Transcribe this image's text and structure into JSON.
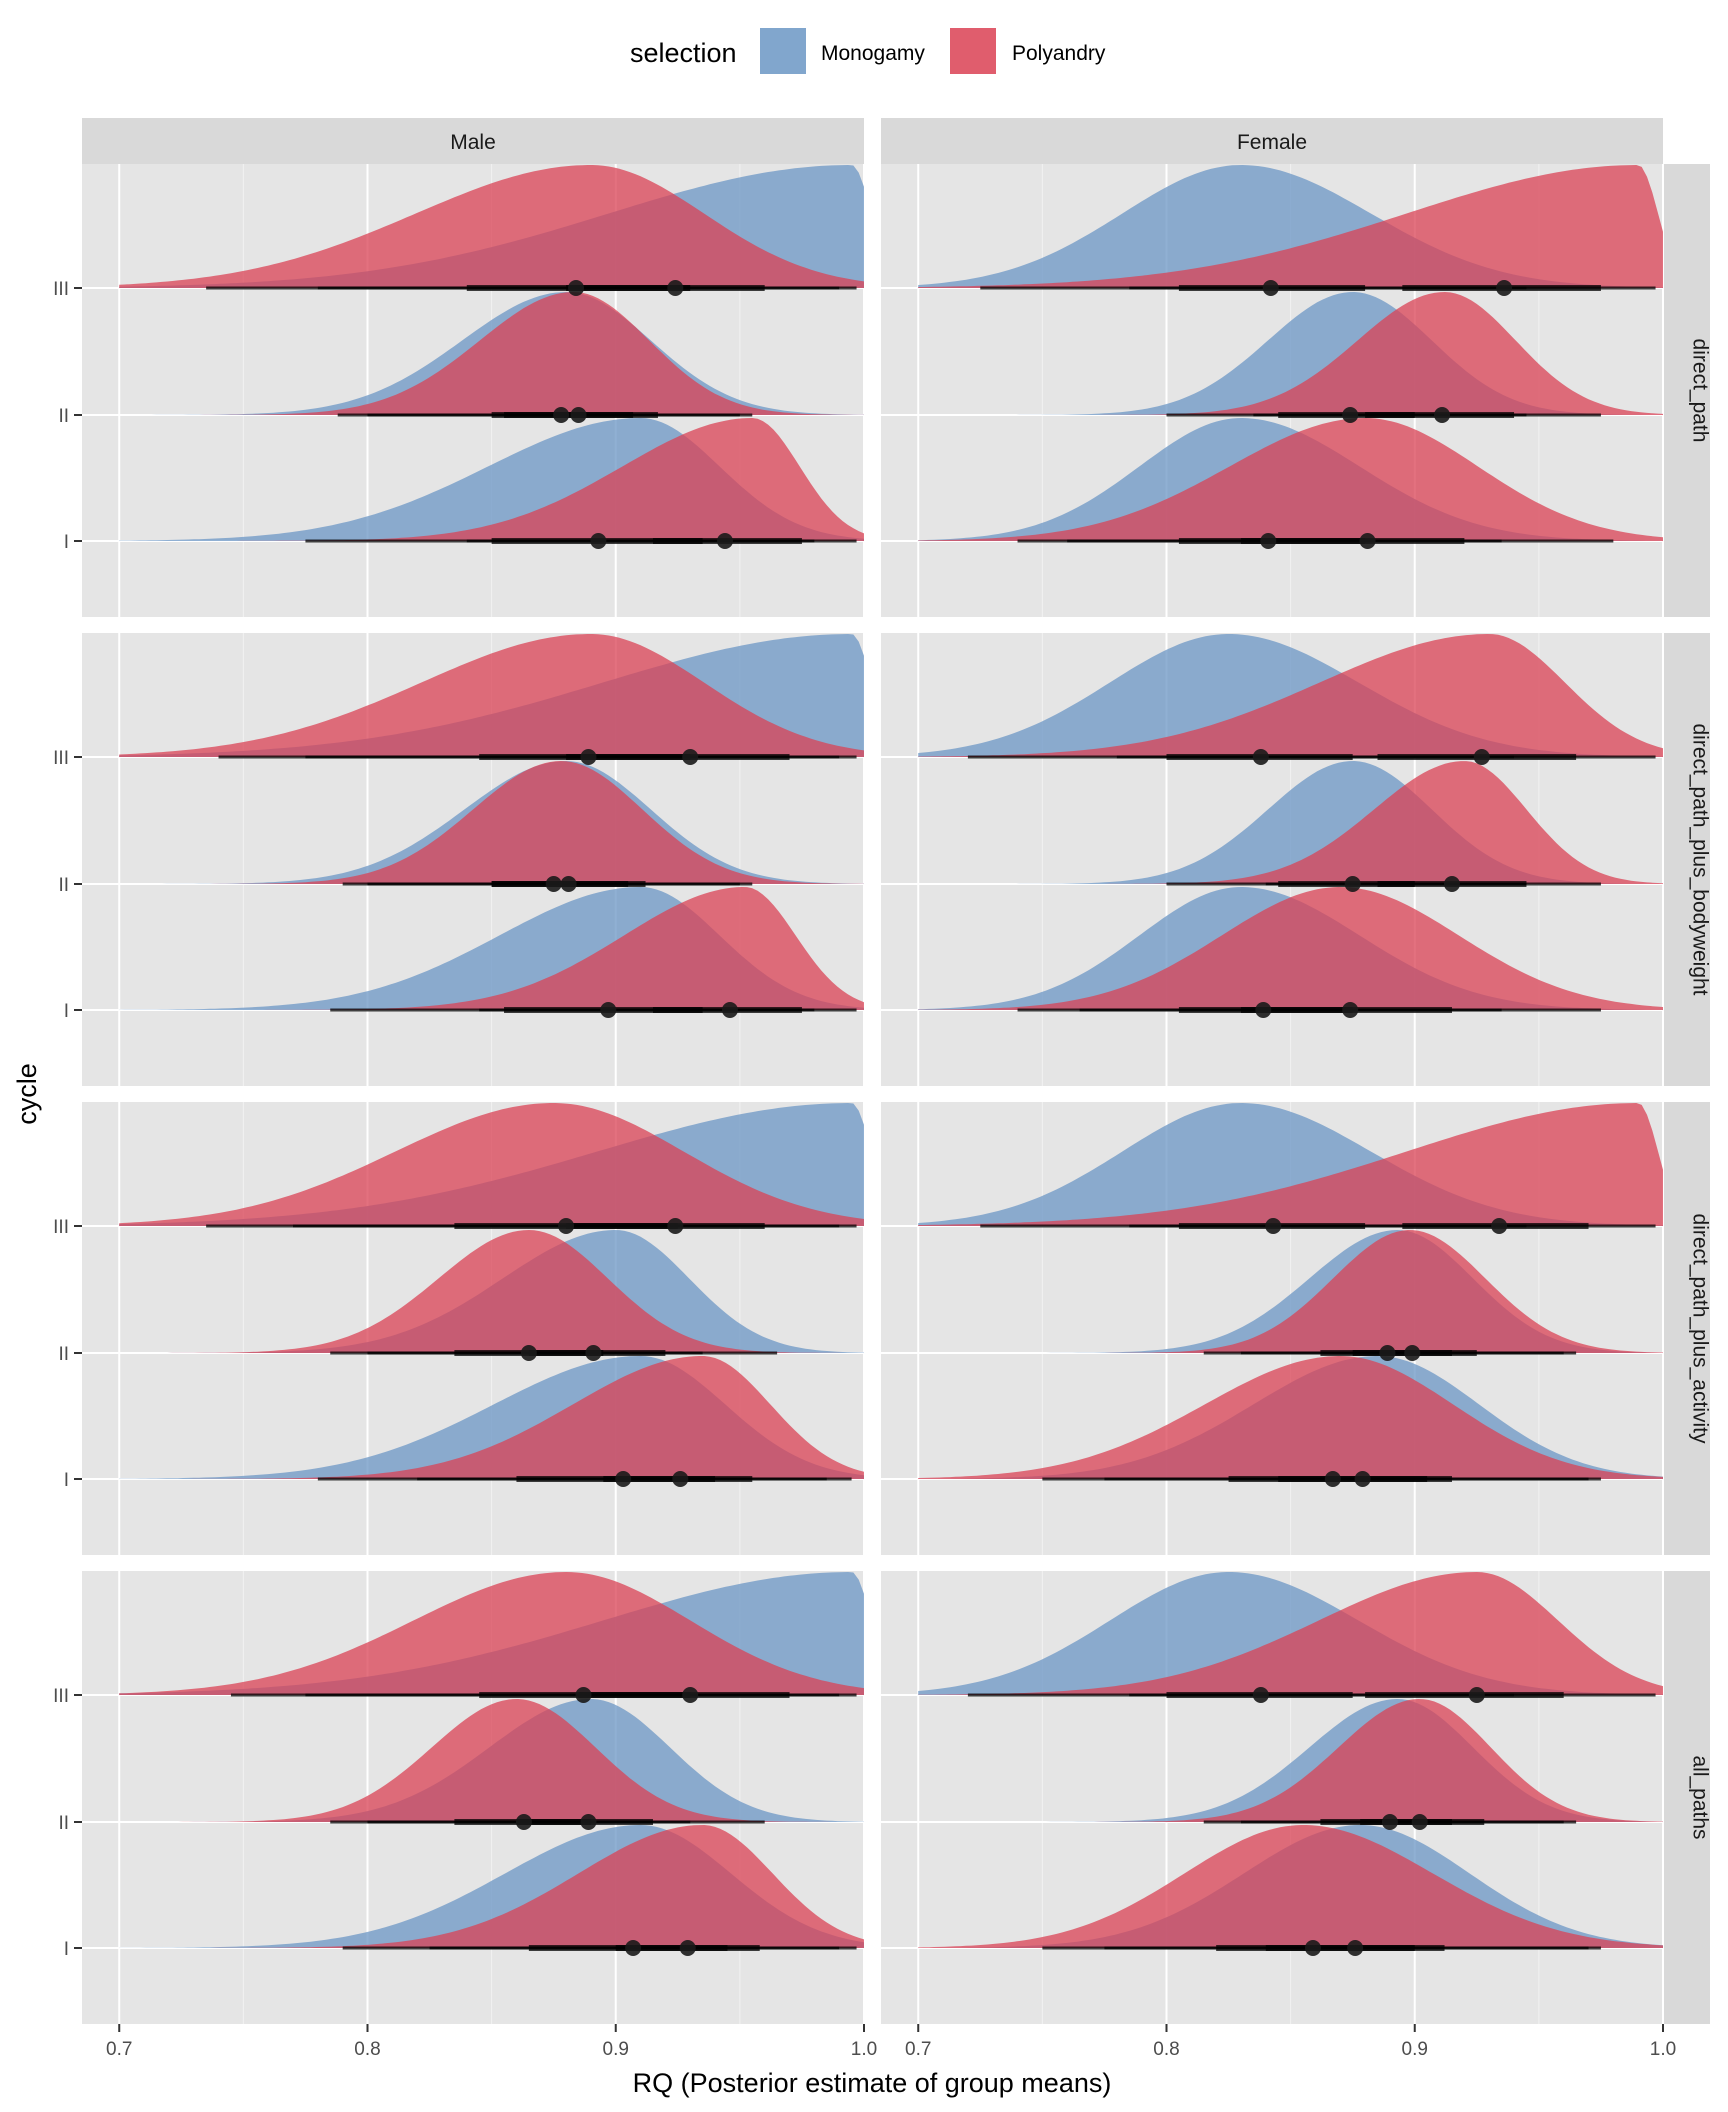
{
  "chart_data": {
    "type": "area",
    "subtype": "faceted halfeye density plots (posterior distributions with point estimate and credible interval bars)",
    "legend": {
      "title": "selection",
      "position": "top",
      "entries": [
        {
          "name": "Monogamy",
          "color": "#6b96c4"
        },
        {
          "name": "Polyandry",
          "color": "#da4154"
        }
      ]
    },
    "xlabel": "RQ (Posterior estimate of group means)",
    "ylabel": "cycle",
    "xlim": [
      0.685,
      1.0
    ],
    "x_ticks": [
      0.7,
      0.8,
      0.9,
      1.0
    ],
    "x_tick_labels": {
      "Male": [
        "0.7",
        "0.8",
        "0.9",
        "1.0"
      ],
      "Female": [
        "0.7",
        "0.8",
        "0.9",
        "1.0"
      ]
    },
    "columns": [
      "Male",
      "Female"
    ],
    "rows": [
      "direct_path",
      "direct_path_plus_bodyweight",
      "direct_path_plus_activity",
      "all_paths"
    ],
    "cycles": [
      "III",
      "II",
      "I"
    ],
    "grid": true,
    "panels": [
      {
        "sex": "Male",
        "model": "direct_path",
        "cycles": [
          {
            "cycle": "III",
            "Monogamy": {
              "median": 0.924,
              "mode": 0.995,
              "ci66": [
                0.88,
                0.96
              ],
              "ci95": [
                0.78,
                0.997
              ]
            },
            "Polyandry": {
              "median": 0.884,
              "mode": 0.89,
              "ci66": [
                0.84,
                0.93
              ],
              "ci95": [
                0.735,
                0.99
              ]
            }
          },
          {
            "cycle": "II",
            "Monogamy": {
              "median": 0.885,
              "mode": 0.88,
              "ci66": [
                0.855,
                0.917
              ],
              "ci95": [
                0.788,
                0.955
              ]
            },
            "Polyandry": {
              "median": 0.878,
              "mode": 0.883,
              "ci66": [
                0.85,
                0.907
              ],
              "ci95": [
                0.8,
                0.95
              ]
            }
          },
          {
            "cycle": "I",
            "Monogamy": {
              "median": 0.893,
              "mode": 0.91,
              "ci66": [
                0.85,
                0.935
              ],
              "ci95": [
                0.775,
                0.98
              ]
            },
            "Polyandry": {
              "median": 0.944,
              "mode": 0.955,
              "ci66": [
                0.915,
                0.975
              ],
              "ci95": [
                0.84,
                0.997
              ]
            }
          }
        ]
      },
      {
        "sex": "Female",
        "model": "direct_path",
        "cycles": [
          {
            "cycle": "III",
            "Monogamy": {
              "median": 0.842,
              "mode": 0.83,
              "ci66": [
                0.805,
                0.88
              ],
              "ci95": [
                0.725,
                0.945
              ]
            },
            "Polyandry": {
              "median": 0.936,
              "mode": 0.99,
              "ci66": [
                0.895,
                0.975
              ],
              "ci95": [
                0.785,
                0.997
              ]
            }
          },
          {
            "cycle": "II",
            "Monogamy": {
              "median": 0.874,
              "mode": 0.875,
              "ci66": [
                0.845,
                0.9
              ],
              "ci95": [
                0.8,
                0.945
              ]
            },
            "Polyandry": {
              "median": 0.911,
              "mode": 0.912,
              "ci66": [
                0.88,
                0.94
              ],
              "ci95": [
                0.835,
                0.975
              ]
            }
          },
          {
            "cycle": "I",
            "Monogamy": {
              "median": 0.841,
              "mode": 0.83,
              "ci66": [
                0.805,
                0.88
              ],
              "ci95": [
                0.74,
                0.935
              ]
            },
            "Polyandry": {
              "median": 0.881,
              "mode": 0.88,
              "ci66": [
                0.83,
                0.92
              ],
              "ci95": [
                0.76,
                0.98
              ]
            }
          }
        ]
      },
      {
        "sex": "Male",
        "model": "direct_path_plus_bodyweight",
        "cycles": [
          {
            "cycle": "III",
            "Monogamy": {
              "median": 0.93,
              "mode": 0.995,
              "ci66": [
                0.88,
                0.97
              ],
              "ci95": [
                0.775,
                0.997
              ]
            },
            "Polyandry": {
              "median": 0.889,
              "mode": 0.89,
              "ci66": [
                0.845,
                0.93
              ],
              "ci95": [
                0.74,
                0.99
              ]
            }
          },
          {
            "cycle": "II",
            "Monogamy": {
              "median": 0.881,
              "mode": 0.88,
              "ci66": [
                0.85,
                0.912
              ],
              "ci95": [
                0.79,
                0.955
              ]
            },
            "Polyandry": {
              "median": 0.875,
              "mode": 0.878,
              "ci66": [
                0.85,
                0.905
              ],
              "ci95": [
                0.8,
                0.95
              ]
            }
          },
          {
            "cycle": "I",
            "Monogamy": {
              "median": 0.897,
              "mode": 0.91,
              "ci66": [
                0.855,
                0.935
              ],
              "ci95": [
                0.785,
                0.98
              ]
            },
            "Polyandry": {
              "median": 0.946,
              "mode": 0.952,
              "ci66": [
                0.915,
                0.975
              ],
              "ci95": [
                0.845,
                0.997
              ]
            }
          }
        ]
      },
      {
        "sex": "Female",
        "model": "direct_path_plus_bodyweight",
        "cycles": [
          {
            "cycle": "III",
            "Monogamy": {
              "median": 0.838,
              "mode": 0.825,
              "ci66": [
                0.8,
                0.875
              ],
              "ci95": [
                0.72,
                0.94
              ]
            },
            "Polyandry": {
              "median": 0.927,
              "mode": 0.93,
              "ci66": [
                0.885,
                0.965
              ],
              "ci95": [
                0.78,
                0.997
              ]
            }
          },
          {
            "cycle": "II",
            "Monogamy": {
              "median": 0.875,
              "mode": 0.875,
              "ci66": [
                0.845,
                0.9
              ],
              "ci95": [
                0.8,
                0.945
              ]
            },
            "Polyandry": {
              "median": 0.915,
              "mode": 0.92,
              "ci66": [
                0.885,
                0.945
              ],
              "ci95": [
                0.84,
                0.975
              ]
            }
          },
          {
            "cycle": "I",
            "Monogamy": {
              "median": 0.839,
              "mode": 0.83,
              "ci66": [
                0.805,
                0.875
              ],
              "ci95": [
                0.74,
                0.935
              ]
            },
            "Polyandry": {
              "median": 0.874,
              "mode": 0.87,
              "ci66": [
                0.83,
                0.915
              ],
              "ci95": [
                0.765,
                0.975
              ]
            }
          }
        ]
      },
      {
        "sex": "Male",
        "model": "direct_path_plus_activity",
        "cycles": [
          {
            "cycle": "III",
            "Monogamy": {
              "median": 0.924,
              "mode": 0.995,
              "ci66": [
                0.88,
                0.96
              ],
              "ci95": [
                0.77,
                0.997
              ]
            },
            "Polyandry": {
              "median": 0.88,
              "mode": 0.875,
              "ci66": [
                0.835,
                0.925
              ],
              "ci95": [
                0.735,
                0.99
              ]
            }
          },
          {
            "cycle": "II",
            "Monogamy": {
              "median": 0.891,
              "mode": 0.9,
              "ci66": [
                0.865,
                0.92
              ],
              "ci95": [
                0.8,
                0.965
              ]
            },
            "Polyandry": {
              "median": 0.865,
              "mode": 0.865,
              "ci66": [
                0.835,
                0.895
              ],
              "ci95": [
                0.785,
                0.935
              ]
            }
          },
          {
            "cycle": "I",
            "Monogamy": {
              "median": 0.903,
              "mode": 0.91,
              "ci66": [
                0.86,
                0.94
              ],
              "ci95": [
                0.78,
                0.985
              ]
            },
            "Polyandry": {
              "median": 0.926,
              "mode": 0.935,
              "ci66": [
                0.895,
                0.955
              ],
              "ci95": [
                0.82,
                0.995
              ]
            }
          }
        ]
      },
      {
        "sex": "Female",
        "model": "direct_path_plus_activity",
        "cycles": [
          {
            "cycle": "III",
            "Monogamy": {
              "median": 0.843,
              "mode": 0.83,
              "ci66": [
                0.805,
                0.88
              ],
              "ci95": [
                0.725,
                0.945
              ]
            },
            "Polyandry": {
              "median": 0.934,
              "mode": 0.99,
              "ci66": [
                0.895,
                0.97
              ],
              "ci95": [
                0.785,
                0.997
              ]
            }
          },
          {
            "cycle": "II",
            "Monogamy": {
              "median": 0.889,
              "mode": 0.893,
              "ci66": [
                0.862,
                0.915
              ],
              "ci95": [
                0.815,
                0.96
              ]
            },
            "Polyandry": {
              "median": 0.899,
              "mode": 0.898,
              "ci66": [
                0.875,
                0.925
              ],
              "ci95": [
                0.83,
                0.965
              ]
            }
          },
          {
            "cycle": "I",
            "Monogamy": {
              "median": 0.879,
              "mode": 0.885,
              "ci66": [
                0.845,
                0.915
              ],
              "ci95": [
                0.775,
                0.975
              ]
            },
            "Polyandry": {
              "median": 0.867,
              "mode": 0.87,
              "ci66": [
                0.825,
                0.905
              ],
              "ci95": [
                0.75,
                0.97
              ]
            }
          }
        ]
      },
      {
        "sex": "Male",
        "model": "all_paths",
        "cycles": [
          {
            "cycle": "III",
            "Monogamy": {
              "median": 0.93,
              "mode": 0.995,
              "ci66": [
                0.885,
                0.97
              ],
              "ci95": [
                0.775,
                0.997
              ]
            },
            "Polyandry": {
              "median": 0.887,
              "mode": 0.88,
              "ci66": [
                0.845,
                0.93
              ],
              "ci95": [
                0.745,
                0.99
              ]
            }
          },
          {
            "cycle": "II",
            "Monogamy": {
              "median": 0.889,
              "mode": 0.89,
              "ci66": [
                0.86,
                0.915
              ],
              "ci95": [
                0.8,
                0.96
              ]
            },
            "Polyandry": {
              "median": 0.863,
              "mode": 0.86,
              "ci66": [
                0.835,
                0.89
              ],
              "ci95": [
                0.785,
                0.93
              ]
            }
          },
          {
            "cycle": "I",
            "Monogamy": {
              "median": 0.907,
              "mode": 0.91,
              "ci66": [
                0.865,
                0.945
              ],
              "ci95": [
                0.79,
                0.99
              ]
            },
            "Polyandry": {
              "median": 0.929,
              "mode": 0.935,
              "ci66": [
                0.9,
                0.958
              ],
              "ci95": [
                0.825,
                0.997
              ]
            }
          }
        ]
      },
      {
        "sex": "Female",
        "model": "all_paths",
        "cycles": [
          {
            "cycle": "III",
            "Monogamy": {
              "median": 0.838,
              "mode": 0.825,
              "ci66": [
                0.8,
                0.875
              ],
              "ci95": [
                0.72,
                0.94
              ]
            },
            "Polyandry": {
              "median": 0.925,
              "mode": 0.925,
              "ci66": [
                0.88,
                0.96
              ],
              "ci95": [
                0.785,
                0.997
              ]
            }
          },
          {
            "cycle": "II",
            "Monogamy": {
              "median": 0.89,
              "mode": 0.893,
              "ci66": [
                0.862,
                0.915
              ],
              "ci95": [
                0.815,
                0.96
              ]
            },
            "Polyandry": {
              "median": 0.902,
              "mode": 0.902,
              "ci66": [
                0.878,
                0.928
              ],
              "ci95": [
                0.83,
                0.965
              ]
            }
          },
          {
            "cycle": "I",
            "Monogamy": {
              "median": 0.876,
              "mode": 0.878,
              "ci66": [
                0.84,
                0.912
              ],
              "ci95": [
                0.775,
                0.975
              ]
            },
            "Polyandry": {
              "median": 0.859,
              "mode": 0.855,
              "ci66": [
                0.82,
                0.9
              ],
              "ci95": [
                0.75,
                0.97
              ]
            }
          }
        ]
      }
    ]
  }
}
